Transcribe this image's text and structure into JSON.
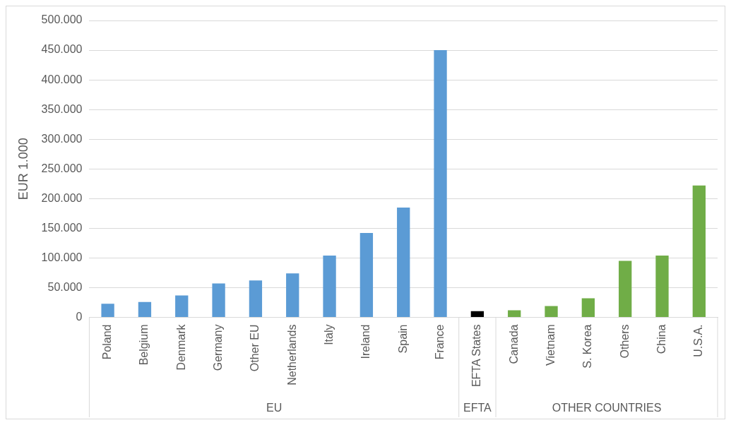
{
  "chart_data": {
    "type": "bar",
    "ylabel": "EUR 1.000",
    "categories": [
      "Poland",
      "Belgium",
      "Denmark",
      "Germany",
      "Other EU",
      "Netherlands",
      "Italy",
      "Ireland",
      "Spain",
      "France",
      "EFTA States",
      "Canada",
      "Vietnam",
      "S. Korea",
      "Others",
      "China",
      "U.S.A."
    ],
    "values": [
      23000,
      26000,
      37000,
      57000,
      62000,
      74000,
      104000,
      142000,
      185000,
      450000,
      10500,
      12000,
      19000,
      32000,
      95000,
      104000,
      222000
    ],
    "colors": [
      "#5b9bd5",
      "#5b9bd5",
      "#5b9bd5",
      "#5b9bd5",
      "#5b9bd5",
      "#5b9bd5",
      "#5b9bd5",
      "#5b9bd5",
      "#5b9bd5",
      "#5b9bd5",
      "#000000",
      "#70ad47",
      "#70ad47",
      "#70ad47",
      "#70ad47",
      "#70ad47",
      "#70ad47"
    ],
    "ylim": [
      0,
      500000
    ],
    "yticks": [
      0,
      {
        "value": 50000,
        "label": "50.000"
      },
      {
        "value": 100000,
        "label": "100.000"
      },
      {
        "value": 150000,
        "label": "150.000"
      },
      {
        "value": 200000,
        "label": "200.000"
      },
      {
        "value": 250000,
        "label": "250.000"
      },
      {
        "value": 300000,
        "label": "300.000"
      },
      {
        "value": 350000,
        "label": "350.000"
      },
      {
        "value": 400000,
        "label": "400.000"
      },
      {
        "value": 450000,
        "label": "450.000"
      },
      {
        "value": 500000,
        "label": "500.000"
      }
    ],
    "annotations": [
      "EU",
      "EFTA",
      "OTHER COUNTRIES"
    ],
    "grid": "y",
    "legend": false
  }
}
